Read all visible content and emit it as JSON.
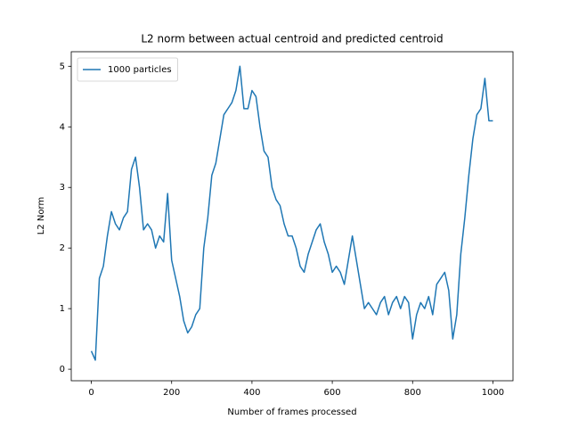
{
  "chart_data": {
    "type": "line",
    "title": "L2 norm between actual centroid and predicted centroid",
    "xlabel": "Number of frames processed",
    "ylabel": "L2 Norm",
    "x": [
      0,
      10,
      20,
      30,
      40,
      50,
      60,
      70,
      80,
      90,
      100,
      110,
      120,
      130,
      140,
      150,
      160,
      170,
      180,
      190,
      200,
      210,
      220,
      230,
      240,
      250,
      260,
      270,
      280,
      290,
      300,
      310,
      320,
      330,
      340,
      350,
      360,
      370,
      380,
      390,
      400,
      410,
      420,
      430,
      440,
      450,
      460,
      470,
      480,
      490,
      500,
      510,
      520,
      530,
      540,
      550,
      560,
      570,
      580,
      590,
      600,
      610,
      620,
      630,
      640,
      650,
      660,
      670,
      680,
      690,
      700,
      710,
      720,
      730,
      740,
      750,
      760,
      770,
      780,
      790,
      800,
      810,
      820,
      830,
      840,
      850,
      860,
      870,
      880,
      890,
      900,
      910,
      920,
      930,
      940,
      950,
      960,
      970,
      980,
      990,
      1000
    ],
    "series": [
      {
        "name": "1000 particles",
        "color": "#1f77b4",
        "values": [
          0.3,
          0.15,
          1.5,
          1.7,
          2.2,
          2.6,
          2.4,
          2.3,
          2.5,
          2.6,
          3.3,
          3.5,
          3.0,
          2.3,
          2.4,
          2.3,
          2.0,
          2.2,
          2.1,
          2.9,
          1.8,
          1.5,
          1.2,
          0.8,
          0.6,
          0.7,
          0.9,
          1.0,
          2.0,
          2.5,
          3.2,
          3.4,
          3.8,
          4.2,
          4.3,
          4.4,
          4.6,
          5.0,
          4.3,
          4.3,
          4.6,
          4.5,
          4.0,
          3.6,
          3.5,
          3.0,
          2.8,
          2.7,
          2.4,
          2.2,
          2.2,
          2.0,
          1.7,
          1.6,
          1.9,
          2.1,
          2.3,
          2.4,
          2.1,
          1.9,
          1.6,
          1.7,
          1.6,
          1.4,
          1.8,
          2.2,
          1.8,
          1.4,
          1.0,
          1.1,
          1.0,
          0.9,
          1.1,
          1.2,
          0.9,
          1.1,
          1.2,
          1.0,
          1.2,
          1.1,
          0.5,
          0.9,
          1.1,
          1.0,
          1.2,
          0.9,
          1.4,
          1.5,
          1.6,
          1.3,
          0.5,
          0.9,
          1.9,
          2.5,
          3.2,
          3.8,
          4.2,
          4.3,
          4.8,
          4.1,
          4.1
        ]
      }
    ],
    "xlim": [
      -50,
      1050
    ],
    "ylim": [
      -0.19,
      5.24
    ],
    "xticks": [
      0,
      200,
      400,
      600,
      800,
      1000
    ],
    "yticks": [
      0,
      1,
      2,
      3,
      4,
      5
    ],
    "legend": "upper left"
  }
}
